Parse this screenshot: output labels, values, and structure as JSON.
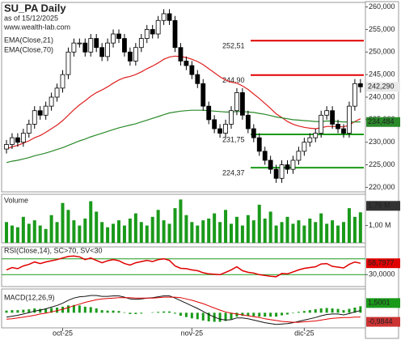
{
  "chart_data": [
    {
      "type": "candlestick",
      "title": "SU_PA Daily",
      "subtitle": "as of 15/12/2025",
      "source": "www.wealth-lab.com",
      "categories": [
        null,
        null,
        null,
        null,
        null,
        null,
        null,
        null,
        null,
        null,
        "oct-25",
        null,
        null,
        null,
        null,
        null,
        null,
        null,
        null,
        null,
        null,
        null,
        null,
        null,
        null,
        null,
        null,
        null,
        null,
        null,
        null,
        null,
        null,
        "nov-25",
        null,
        null,
        null,
        null,
        null,
        null,
        null,
        null,
        null,
        null,
        null,
        null,
        null,
        null,
        null,
        null,
        null,
        null,
        null,
        "dic-25",
        null,
        null,
        null,
        null,
        null,
        null,
        null,
        null,
        null,
        null
      ],
      "open": [
        228.5,
        229.5,
        231,
        230,
        232,
        234,
        237,
        236,
        238,
        240,
        242,
        245,
        250,
        252,
        252,
        250,
        253,
        251,
        249,
        252,
        254,
        253,
        250,
        248,
        251,
        253,
        255,
        254,
        257,
        258.5,
        257,
        251,
        248,
        247,
        245,
        243,
        238,
        235,
        233,
        232,
        234,
        237,
        241,
        236,
        233,
        231,
        228,
        226,
        224,
        222,
        225,
        224,
        226,
        228,
        230,
        231,
        232,
        236,
        237,
        234,
        233,
        232,
        238,
        243
      ],
      "high": [
        230.5,
        232,
        232,
        233,
        235,
        238,
        238,
        239,
        241,
        243,
        246,
        251,
        253,
        253,
        253,
        254,
        254,
        252,
        253,
        255,
        255,
        254,
        251,
        252,
        254,
        256,
        256,
        258,
        259.5,
        259.5,
        258,
        252,
        249,
        248,
        246,
        244,
        239,
        236,
        234,
        235,
        238,
        242,
        242,
        237,
        234,
        232,
        229,
        227,
        225,
        226,
        226,
        227,
        229,
        231,
        232,
        233,
        237,
        238,
        238,
        235,
        234,
        239,
        244,
        244
      ],
      "low": [
        227.5,
        228.5,
        229,
        229,
        231,
        233,
        235,
        235,
        237,
        239,
        241,
        244,
        249,
        251,
        249,
        249,
        250,
        248,
        248,
        251,
        252,
        249,
        247,
        247,
        250,
        252,
        253,
        253,
        256,
        256,
        250,
        247,
        246,
        244,
        242,
        237,
        234,
        232,
        231,
        231,
        233,
        236,
        235,
        232,
        230,
        227,
        225,
        223,
        221,
        221,
        223,
        223,
        225,
        227,
        229,
        230,
        231,
        235,
        233,
        232,
        231,
        231,
        237,
        241
      ],
      "close": [
        229.5,
        231,
        230,
        232,
        234,
        237,
        236,
        238,
        240,
        242,
        245,
        250,
        252,
        252,
        250,
        253,
        251,
        249,
        252,
        254,
        253,
        250,
        248,
        251,
        253,
        255,
        254,
        257,
        258.5,
        257,
        251,
        248,
        247,
        245,
        243,
        238,
        235,
        233,
        232,
        234,
        237,
        241,
        236,
        233,
        231,
        228,
        226,
        224,
        222,
        225,
        224,
        226,
        228,
        230,
        231,
        232,
        236,
        237,
        234,
        233,
        232,
        238,
        243,
        242.29
      ],
      "last_close_label": "242,290",
      "series": [
        {
          "name": "EMA(Close,21)",
          "color": "#e02020",
          "values": [
            228.5,
            229,
            229.3,
            229.8,
            230.3,
            231,
            231.5,
            232.2,
            233,
            233.8,
            234.8,
            236,
            237.2,
            238.3,
            239.2,
            240.2,
            241,
            241.6,
            242.3,
            243.1,
            243.8,
            244.3,
            244.6,
            245,
            245.6,
            246.3,
            246.9,
            247.6,
            248.4,
            248.9,
            249.1,
            249,
            248.8,
            248.4,
            247.9,
            247.2,
            246.3,
            245.4,
            244.5,
            243.8,
            243.3,
            243.1,
            242.5,
            241.7,
            240.7,
            239.7,
            238.6,
            237.5,
            236.3,
            235.5,
            234.6,
            234,
            233.6,
            233.3,
            233.1,
            233,
            233.2,
            233.5,
            233.5,
            233.5,
            233.4,
            233.8,
            234.6,
            235.2
          ]
        },
        {
          "name": "EMA(Close,70)",
          "color": "#2a8a2a",
          "last_label": "234,484",
          "values": [
            225.5,
            225.8,
            226,
            226.3,
            226.6,
            227,
            227.3,
            227.6,
            228,
            228.4,
            228.8,
            229.3,
            229.8,
            230.3,
            230.7,
            231.2,
            231.6,
            232,
            232.4,
            232.8,
            233.2,
            233.5,
            233.8,
            234.1,
            234.5,
            234.9,
            235.3,
            235.7,
            236.1,
            236.5,
            236.7,
            236.9,
            237,
            237.1,
            237.1,
            237.1,
            237,
            236.9,
            236.8,
            236.7,
            236.7,
            236.8,
            236.8,
            236.7,
            236.6,
            236.4,
            236.2,
            235.9,
            235.6,
            235.4,
            235.2,
            235,
            234.9,
            234.8,
            234.7,
            234.6,
            234.6,
            234.7,
            234.7,
            234.6,
            234.5,
            234.5,
            234.5,
            234.484
          ]
        }
      ],
      "levels": [
        {
          "value": 252.51,
          "label": "252,51",
          "color": "#e00000"
        },
        {
          "value": 244.9,
          "label": "244,90",
          "color": "#e00000"
        },
        {
          "value": 231.75,
          "label": "231,75",
          "color": "#1a9a1a"
        },
        {
          "value": 224.37,
          "label": "224,37",
          "color": "#1a9a1a"
        }
      ],
      "ylim": [
        219,
        261
      ],
      "yticks": [
        {
          "value": 260,
          "label": "260,000"
        },
        {
          "value": 255,
          "label": "255,000"
        },
        {
          "value": 250,
          "label": "250,000"
        },
        {
          "value": 245,
          "label": "245,000"
        },
        {
          "value": 240,
          "label": "240,000"
        },
        {
          "value": 235,
          "label": "235,000"
        },
        {
          "value": 230,
          "label": "230,000"
        },
        {
          "value": 225,
          "label": "225,000"
        },
        {
          "value": 220,
          "label": "220,000"
        }
      ]
    },
    {
      "type": "bar",
      "title": "Volume",
      "color": "#1a9a1a",
      "values": [
        1.2,
        1.0,
        0.9,
        1.5,
        1.1,
        1.3,
        1.0,
        0.8,
        1.6,
        1.2,
        2.3,
        1.9,
        1.3,
        1.0,
        1.4,
        2.4,
        1.8,
        1.2,
        0.9,
        1.1,
        1.3,
        1.0,
        1.4,
        1.7,
        1.2,
        1.0,
        1.5,
        1.9,
        1.3,
        1.1,
        2.0,
        2.5,
        1.6,
        1.2,
        1.0,
        1.3,
        1.4,
        1.7,
        1.2,
        1.9,
        1.1,
        1.5,
        1.0,
        1.6,
        1.3,
        2.2,
        1.4,
        1.8,
        1.0,
        1.2,
        1.5,
        1.1,
        1.3,
        1.0,
        1.4,
        1.2,
        1.7,
        1.1,
        1.3,
        1.0,
        1.2,
        2.0,
        1.5,
        1.76
      ],
      "last_label": "1,76 M",
      "ylim": [
        0,
        2.8
      ],
      "yticks": [
        {
          "value": 1,
          "label": "1,00 M"
        }
      ]
    },
    {
      "type": "line",
      "title": "RSI(Close,14), SC>70, SV<30",
      "color": "#e00000",
      "level_color": "#1a9a1a",
      "values": [
        42,
        48,
        45,
        52,
        56,
        62,
        58,
        62,
        65,
        68,
        72,
        76,
        77,
        75,
        68,
        72,
        66,
        60,
        65,
        68,
        65,
        58,
        54,
        60,
        63,
        66,
        63,
        68,
        70,
        66,
        52,
        46,
        45,
        42,
        40,
        35,
        32,
        31,
        30,
        36,
        42,
        50,
        40,
        36,
        34,
        30,
        28,
        26,
        25,
        33,
        32,
        37,
        42,
        46,
        48,
        50,
        57,
        58,
        51,
        49,
        47,
        56,
        62,
        58.7977
      ],
      "last_label": "58,7977",
      "levels": [
        70,
        30
      ],
      "ylim": [
        0,
        100
      ],
      "yticks": [
        {
          "value": 30,
          "label": "30,0000"
        }
      ]
    },
    {
      "type": "macd",
      "title": "MACD(12,26,9)",
      "macd": {
        "color": "#111111",
        "values": [
          -1.0,
          -0.8,
          -0.6,
          -0.3,
          0.0,
          0.4,
          0.6,
          0.9,
          1.3,
          1.7,
          2.2,
          2.9,
          3.4,
          3.7,
          3.8,
          4.0,
          4.0,
          3.8,
          3.8,
          3.9,
          3.9,
          3.6,
          3.2,
          3.1,
          3.2,
          3.4,
          3.5,
          3.7,
          3.9,
          3.9,
          3.4,
          2.8,
          2.2,
          1.6,
          1.0,
          0.3,
          -0.4,
          -1.0,
          -1.5,
          -1.7,
          -1.6,
          -1.2,
          -1.2,
          -1.4,
          -1.7,
          -2.0,
          -2.3,
          -2.5,
          -2.7,
          -2.6,
          -2.5,
          -2.3,
          -2.0,
          -1.7,
          -1.4,
          -1.1,
          -0.7,
          -0.4,
          -0.3,
          -0.3,
          -0.5,
          -0.2,
          0.2,
          0.52
        ]
      },
      "signal": {
        "color": "#e00000",
        "last_label": "-0,9844",
        "values": [
          -1.5,
          -1.4,
          -1.2,
          -1.0,
          -0.8,
          -0.6,
          -0.3,
          -0.1,
          0.2,
          0.5,
          0.8,
          1.2,
          1.6,
          2.0,
          2.4,
          2.7,
          3.0,
          3.2,
          3.3,
          3.4,
          3.5,
          3.5,
          3.5,
          3.4,
          3.4,
          3.4,
          3.4,
          3.5,
          3.6,
          3.6,
          3.6,
          3.5,
          3.2,
          2.9,
          2.5,
          2.1,
          1.6,
          1.1,
          0.6,
          0.2,
          -0.1,
          -0.3,
          -0.5,
          -0.7,
          -0.9,
          -1.1,
          -1.4,
          -1.6,
          -1.8,
          -2.0,
          -2.1,
          -2.2,
          -2.2,
          -2.1,
          -2.0,
          -1.9,
          -1.7,
          -1.5,
          -1.3,
          -1.2,
          -1.1,
          -1.1,
          -1.0,
          -0.9844
        ]
      },
      "histogram": {
        "color": "#1a9a1a",
        "last_label": "1,5001",
        "values": [
          0.5,
          0.6,
          0.6,
          0.7,
          0.8,
          1.0,
          0.9,
          1.0,
          1.1,
          1.2,
          1.4,
          1.7,
          1.8,
          1.7,
          1.4,
          1.3,
          1.0,
          0.6,
          0.5,
          0.5,
          0.4,
          0.1,
          -0.3,
          -0.3,
          -0.2,
          0,
          0.1,
          0.2,
          0.3,
          0.3,
          -0.2,
          -0.7,
          -1.0,
          -1.3,
          -1.5,
          -1.8,
          -2.0,
          -2.1,
          -2.1,
          -1.9,
          -1.5,
          -0.9,
          -0.7,
          -0.7,
          -0.8,
          -0.9,
          -0.9,
          -0.9,
          -0.9,
          -0.6,
          -0.4,
          -0.1,
          0.2,
          0.4,
          0.6,
          0.8,
          1.0,
          1.1,
          1.0,
          0.9,
          0.6,
          0.9,
          1.2,
          1.5001
        ]
      },
      "ylim": [
        -3.5,
        5.5
      ]
    }
  ]
}
